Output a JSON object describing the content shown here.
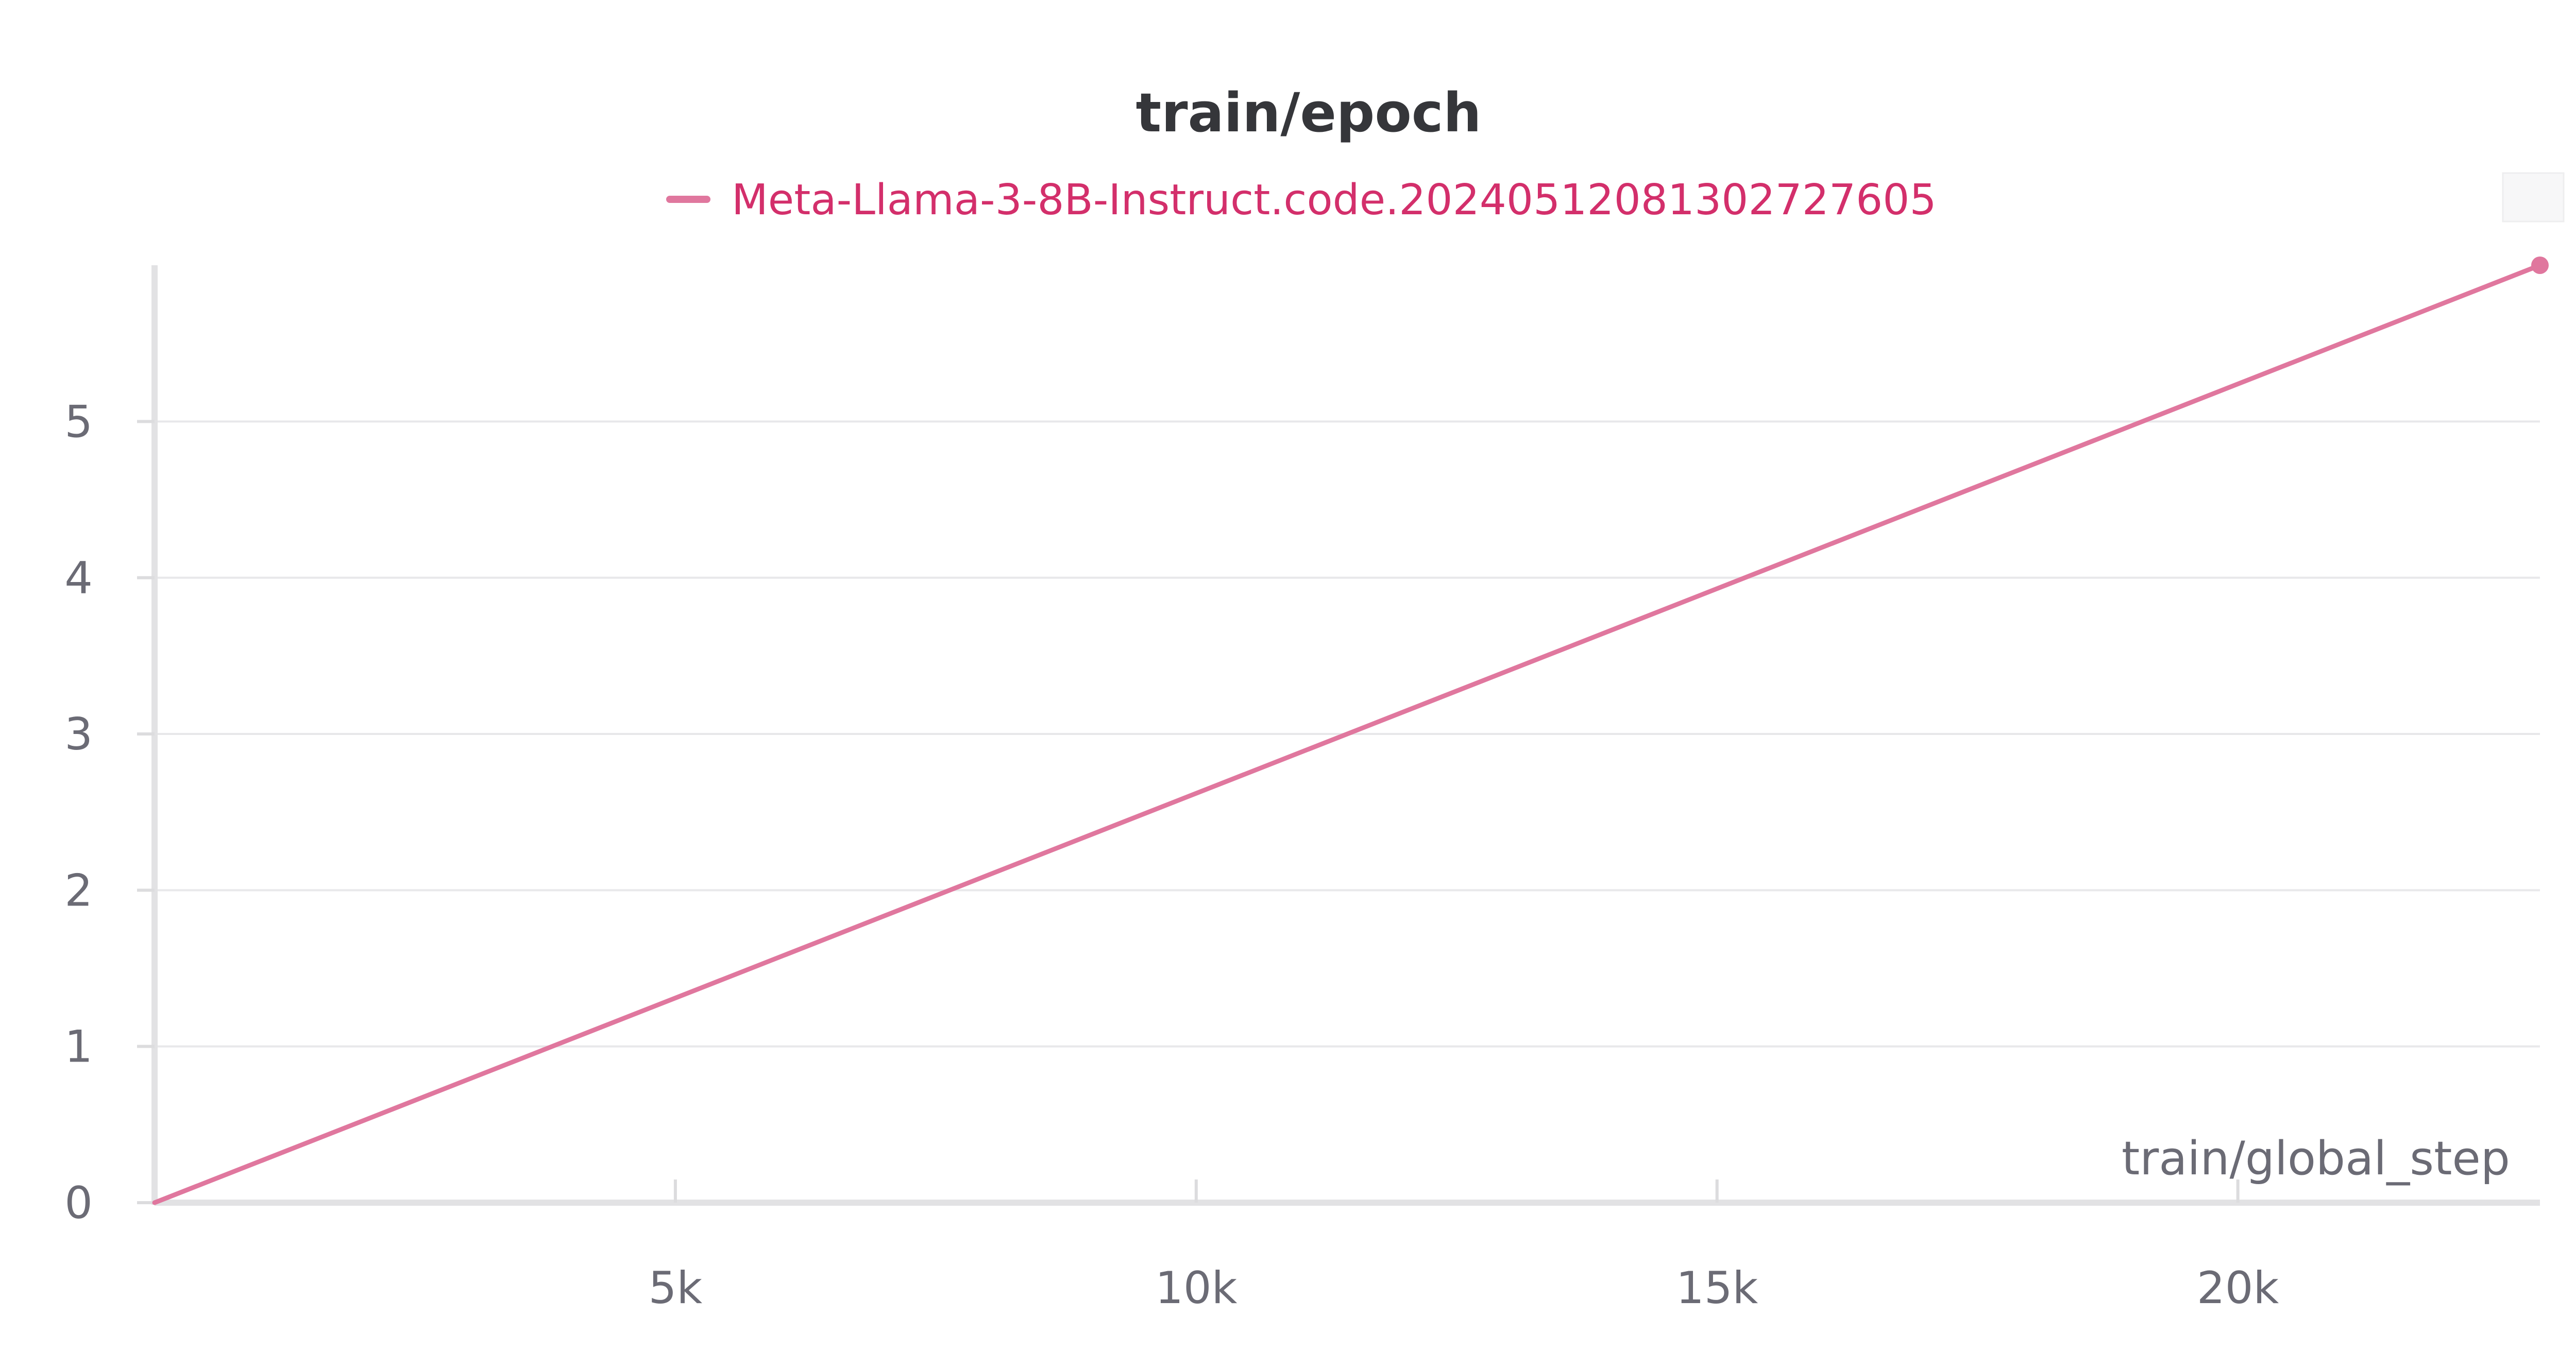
{
  "chart_data": {
    "type": "line",
    "title": "train/epoch",
    "xlabel": "train/global_step",
    "ylabel": "",
    "xlim": [
      0,
      22900
    ],
    "ylim": [
      0,
      6
    ],
    "x_ticks": [
      {
        "value": 5000,
        "label": "5k"
      },
      {
        "value": 10000,
        "label": "10k"
      },
      {
        "value": 15000,
        "label": "15k"
      },
      {
        "value": 20000,
        "label": "20k"
      }
    ],
    "y_ticks": [
      {
        "value": 0,
        "label": "0"
      },
      {
        "value": 1,
        "label": "1"
      },
      {
        "value": 2,
        "label": "2"
      },
      {
        "value": 3,
        "label": "3"
      },
      {
        "value": 4,
        "label": "4"
      },
      {
        "value": 5,
        "label": "5"
      }
    ],
    "grid": true,
    "legend_position": "top-center",
    "series": [
      {
        "name": "Meta-Llama-3-8B-Instruct.code.20240512081302727605",
        "color": "#e0779e",
        "x": [
          0,
          22900
        ],
        "y": [
          0,
          6
        ],
        "end_marker": true
      }
    ]
  }
}
